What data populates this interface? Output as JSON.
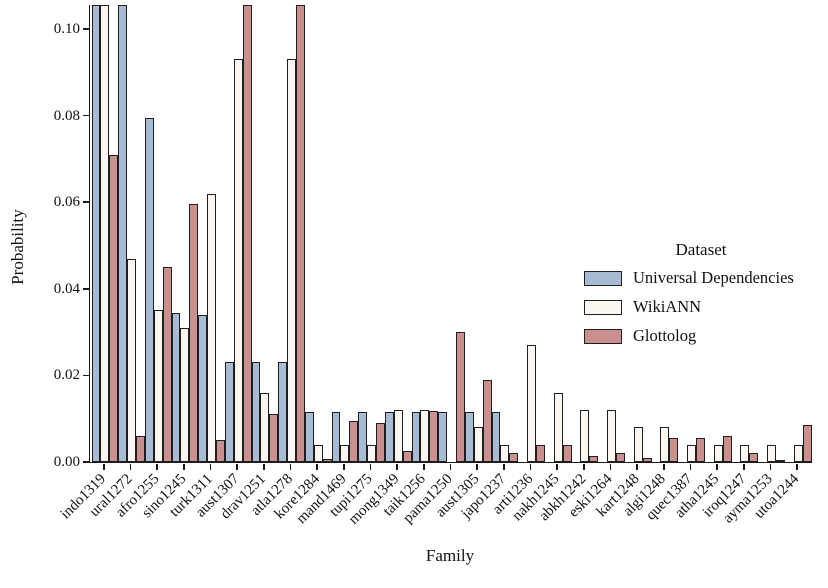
{
  "chart_data": {
    "type": "bar",
    "title": "",
    "xlabel": "Family",
    "ylabel": "Probability",
    "ylim": [
      0,
      0.1
    ],
    "yticks": [
      0,
      0.02,
      0.04,
      0.06,
      0.08,
      0.1
    ],
    "ytick_labels": [
      "0.00",
      "0.02",
      "0.04",
      "0.06",
      "0.08",
      "0.10"
    ],
    "grid": false,
    "legend_title": "Dataset",
    "legend_position": "center-right",
    "categories": [
      "indo1319",
      "ural1272",
      "afro1255",
      "sino1245",
      "turk1311",
      "aust1307",
      "drav1251",
      "atla1278",
      "kore1284",
      "mand1469",
      "tupi1275",
      "mong1349",
      "taik1256",
      "pama1250",
      "aust1305",
      "japo1237",
      "arti1236",
      "nakh1245",
      "abkh1242",
      "eski1264",
      "kart1248",
      "algi1248",
      "quec1387",
      "atha1245",
      "iroq1247",
      "ayma1253",
      "utoa1244"
    ],
    "series": [
      {
        "name": "Universal Dependencies",
        "color": "#a7bbd3",
        "values": [
          0.1,
          0.1,
          0.0795,
          0.0345,
          0.034,
          0.023,
          0.023,
          0.023,
          0.0115,
          0.0115,
          0.0115,
          0.0115,
          0.0115,
          0.0115,
          0.0115,
          0.0115,
          0,
          0,
          0,
          0,
          0,
          0,
          0,
          0,
          0,
          0,
          0
        ]
      },
      {
        "name": "WikiANN",
        "color": "#fbf6f0",
        "values": [
          0.1,
          0.047,
          0.035,
          0.031,
          0.062,
          0.093,
          0.016,
          0.093,
          0.004,
          0.004,
          0.004,
          0.012,
          0.012,
          0,
          0.008,
          0.004,
          0.027,
          0.016,
          0.012,
          0.012,
          0.008,
          0.008,
          0.004,
          0.004,
          0.004,
          0.004,
          0.004
        ]
      },
      {
        "name": "Glottolog",
        "color": "#ca9090",
        "values": [
          0.071,
          0.006,
          0.045,
          0.0595,
          0.005,
          0.1,
          0.011,
          0.1,
          0.0008,
          0.0095,
          0.009,
          0.0025,
          0.0118,
          0.03,
          0.019,
          0.002,
          0.004,
          0.004,
          0.0015,
          0.002,
          0.001,
          0.0055,
          0.0055,
          0.006,
          0.002,
          0.0005,
          0.0085
        ]
      }
    ],
    "clipped_bars_note": "these bars exceed the y-axis maximum and are clipped at the top of the axes",
    "clipped": [
      [
        0,
        0
      ],
      [
        1,
        0
      ],
      [
        0,
        1
      ],
      [
        2,
        5
      ],
      [
        2,
        7
      ]
    ]
  },
  "style": {
    "bar_edge_color": "#1f1f1f",
    "axis_color": "#1a1a1a",
    "background": "#ffffff"
  }
}
